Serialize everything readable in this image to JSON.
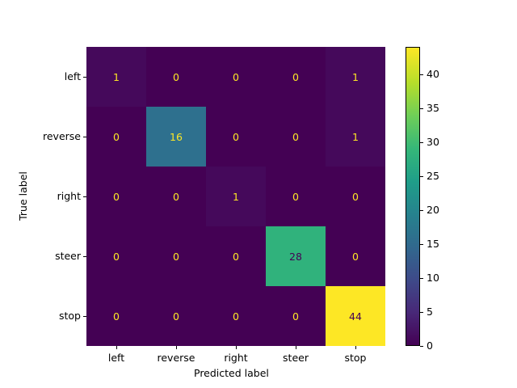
{
  "chart_data": {
    "type": "heatmap",
    "title": "",
    "xlabel": "Predicted label",
    "ylabel": "True label",
    "x_categories": [
      "left",
      "reverse",
      "right",
      "steer",
      "stop"
    ],
    "y_categories": [
      "left",
      "reverse",
      "right",
      "steer",
      "stop"
    ],
    "values": [
      [
        1,
        0,
        0,
        0,
        1
      ],
      [
        0,
        16,
        0,
        0,
        1
      ],
      [
        0,
        0,
        1,
        0,
        0
      ],
      [
        0,
        0,
        0,
        28,
        0
      ],
      [
        0,
        0,
        0,
        0,
        44
      ]
    ],
    "colormap": "viridis",
    "colorbar": {
      "range": [
        0,
        44
      ],
      "ticks": [
        "0",
        "5",
        "10",
        "15",
        "20",
        "25",
        "30",
        "35",
        "40"
      ]
    },
    "grid": false
  },
  "colors": {
    "v0": "#440154",
    "v1": "#46085c",
    "v16": "#2d718e",
    "v28": "#2ab07f",
    "v44": "#fde725",
    "text_light": "#fde725",
    "text_dark": "#440154"
  }
}
